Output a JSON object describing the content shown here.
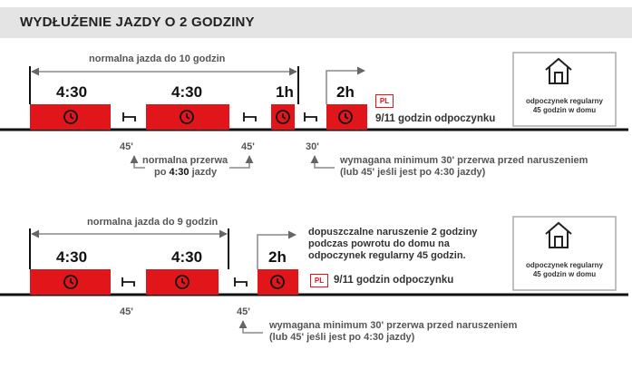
{
  "title": "WYDŁUŻENIE JAZDY O 2 GODZINY",
  "row1": {
    "span_label": "normalna jazda do 10 godzin",
    "blocks": [
      "4:30",
      "4:30",
      "1h",
      "2h"
    ],
    "breaks": [
      "45'",
      "45'",
      "30'"
    ],
    "pl_badge": "PL",
    "rest_label": "9/11 godzin odpoczynku",
    "note_left_1": "normalna przerwa",
    "note_left_2_pre": "po ",
    "note_left_2_bold": "4:30",
    "note_left_2_post": " jazdy",
    "note_right_1": "wymagana minimum 30' przerwa przed naruszeniem",
    "note_right_2": "(lub 45' jeśli jest po 4:30 jazdy)",
    "home_label_1": "odpoczynek regularny",
    "home_label_2": "45 godzin w domu"
  },
  "row2": {
    "span_label": "normalna jazda do 9 godzin",
    "blocks": [
      "4:30",
      "4:30",
      "2h"
    ],
    "breaks": [
      "45'",
      "45'"
    ],
    "pl_badge": "PL",
    "rest_label": "9/11 godzin odpoczynku",
    "violation_1": "dopuszczalne naruszenie 2 godziny",
    "violation_2": "podczas powrotu do domu na",
    "violation_3": "odpoczynek regularny 45 godzin.",
    "note_right_1": "wymagana minimum 30' przerwa przed naruszeniem",
    "note_right_2": "(lub 45' jeśli jest po 4:30 jazdy)",
    "home_label_1": "odpoczynek regularny",
    "home_label_2": "45 godzin w domu"
  },
  "colors": {
    "driving": "#e0161b",
    "header_bg": "#e4e4e4",
    "line": "#111111",
    "arrow": "#666666"
  }
}
